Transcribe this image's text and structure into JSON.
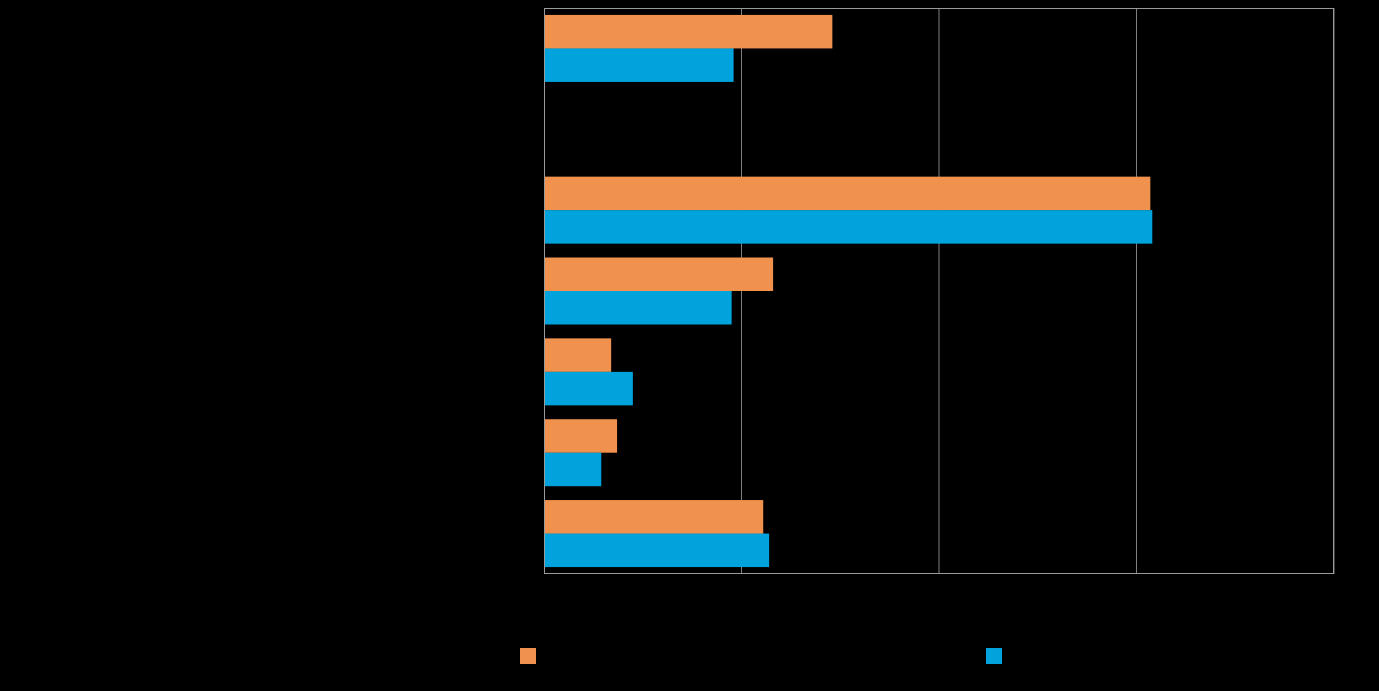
{
  "chart_data": {
    "type": "bar",
    "orientation": "horizontal",
    "title": "",
    "xlabel": "",
    "ylabel": "",
    "categories": [
      "",
      "",
      "",
      "",
      "",
      "",
      ""
    ],
    "xlim": [
      0,
      4
    ],
    "grid": true,
    "legend_position": "bottom",
    "series": [
      {
        "color": "#f0924d",
        "values": [
          1.46,
          null,
          3.07,
          1.16,
          0.34,
          0.37,
          1.11
        ]
      },
      {
        "color": "#00a3dc",
        "values": [
          0.96,
          null,
          3.08,
          0.95,
          0.45,
          0.29,
          1.14
        ]
      }
    ]
  },
  "colors": {
    "background": "#000000",
    "gridline": "#808080",
    "axis": "#9a9a9a"
  }
}
